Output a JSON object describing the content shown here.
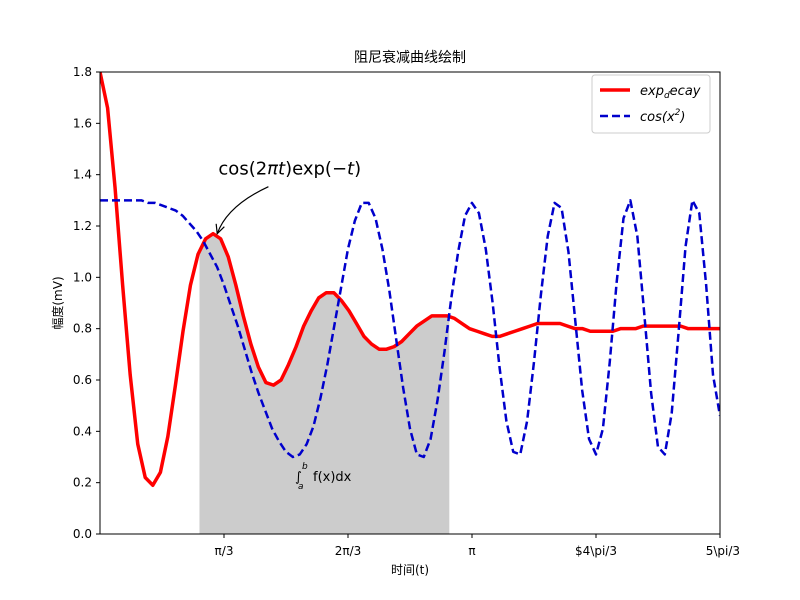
{
  "chart_data": {
    "type": "line",
    "title": "阻尼衰减曲线绘制",
    "xlabel": "时间(t)",
    "ylabel": "幅度(mV)",
    "xlim": [
      0,
      5.236
    ],
    "ylim": [
      0.0,
      1.8
    ],
    "yticks": [
      0.0,
      0.2,
      0.4,
      0.6,
      0.8,
      1.0,
      1.2,
      1.4,
      1.6,
      1.8
    ],
    "ytick_labels": [
      "0.0",
      "0.2",
      "0.4",
      "0.6",
      "0.8",
      "1.0",
      "1.2",
      "1.4",
      "1.6",
      "1.8"
    ],
    "xticks": [
      1.0472,
      2.0944,
      3.1416,
      4.1888,
      5.236
    ],
    "xtick_labels": [
      "π/3",
      "2π/3",
      "π",
      "$4\\pi/3",
      "5\\pi/3"
    ],
    "grid": false,
    "legend_position": "top-right",
    "series": [
      {
        "name": "exp_decay",
        "legend_label": "exp",
        "legend_sub": "d",
        "legend_rest": "ecay",
        "color": "#ff0000",
        "style": "solid",
        "x": [
          0.0,
          0.064,
          0.127,
          0.191,
          0.255,
          0.319,
          0.382,
          0.446,
          0.51,
          0.573,
          0.637,
          0.701,
          0.764,
          0.828,
          0.892,
          0.955,
          1.019,
          1.083,
          1.147,
          1.21,
          1.274,
          1.338,
          1.401,
          1.465,
          1.529,
          1.592,
          1.656,
          1.72,
          1.784,
          1.847,
          1.911,
          1.975,
          2.038,
          2.102,
          2.166,
          2.229,
          2.293,
          2.357,
          2.42,
          2.484,
          2.548,
          2.611,
          2.675,
          2.739,
          2.803,
          2.866,
          2.93,
          2.994,
          3.057,
          3.121,
          3.185,
          3.248,
          3.312,
          3.376,
          3.439,
          3.503,
          3.567,
          3.631,
          3.694,
          3.758,
          3.822,
          3.885,
          3.949,
          4.013,
          4.076,
          4.14,
          4.204,
          4.268,
          4.331,
          4.395,
          4.459,
          4.522,
          4.586,
          4.65,
          4.713,
          4.777,
          4.841,
          4.904,
          4.968,
          5.032,
          5.096,
          5.159,
          5.236
        ],
        "y": [
          1.8,
          1.66,
          1.35,
          0.97,
          0.62,
          0.35,
          0.22,
          0.19,
          0.24,
          0.38,
          0.58,
          0.79,
          0.97,
          1.09,
          1.15,
          1.17,
          1.15,
          1.08,
          0.97,
          0.85,
          0.74,
          0.65,
          0.59,
          0.58,
          0.6,
          0.66,
          0.73,
          0.81,
          0.87,
          0.92,
          0.94,
          0.94,
          0.91,
          0.87,
          0.82,
          0.77,
          0.74,
          0.72,
          0.72,
          0.73,
          0.75,
          0.78,
          0.81,
          0.83,
          0.85,
          0.85,
          0.85,
          0.84,
          0.82,
          0.8,
          0.79,
          0.78,
          0.77,
          0.77,
          0.78,
          0.79,
          0.8,
          0.81,
          0.82,
          0.82,
          0.82,
          0.82,
          0.81,
          0.8,
          0.8,
          0.79,
          0.79,
          0.79,
          0.79,
          0.8,
          0.8,
          0.8,
          0.81,
          0.81,
          0.81,
          0.81,
          0.81,
          0.81,
          0.8,
          0.8,
          0.8,
          0.8,
          0.8
        ]
      },
      {
        "name": "cos(x^2)",
        "legend_label": "cos(x",
        "legend_sup": "2",
        "legend_rest": ")",
        "color": "#0000cc",
        "style": "dashed",
        "x": [
          0.0,
          0.058,
          0.116,
          0.175,
          0.233,
          0.291,
          0.349,
          0.407,
          0.465,
          0.524,
          0.582,
          0.64,
          0.698,
          0.756,
          0.814,
          0.873,
          0.931,
          0.989,
          1.047,
          1.105,
          1.164,
          1.222,
          1.28,
          1.338,
          1.396,
          1.454,
          1.513,
          1.571,
          1.629,
          1.687,
          1.745,
          1.803,
          1.862,
          1.92,
          1.978,
          2.036,
          2.094,
          2.152,
          2.211,
          2.269,
          2.327,
          2.385,
          2.443,
          2.501,
          2.56,
          2.618,
          2.676,
          2.734,
          2.792,
          2.85,
          2.909,
          2.967,
          3.025,
          3.083,
          3.141,
          3.2,
          3.258,
          3.316,
          3.374,
          3.432,
          3.49,
          3.549,
          3.607,
          3.665,
          3.723,
          3.781,
          3.839,
          3.898,
          3.956,
          4.014,
          4.072,
          4.13,
          4.189,
          4.247,
          4.305,
          4.363,
          4.421,
          4.479,
          4.538,
          4.596,
          4.654,
          4.712,
          4.77,
          4.828,
          4.887,
          4.945,
          5.003,
          5.061,
          5.119,
          5.177,
          5.236
        ],
        "y": [
          1.3,
          1.3,
          1.3,
          1.3,
          1.3,
          1.3,
          1.3,
          1.29,
          1.29,
          1.28,
          1.27,
          1.26,
          1.24,
          1.21,
          1.18,
          1.14,
          1.09,
          1.04,
          0.97,
          0.89,
          0.81,
          0.72,
          0.63,
          0.55,
          0.48,
          0.41,
          0.36,
          0.32,
          0.3,
          0.31,
          0.35,
          0.42,
          0.53,
          0.66,
          0.81,
          0.96,
          1.11,
          1.22,
          1.29,
          1.29,
          1.23,
          1.11,
          0.95,
          0.76,
          0.57,
          0.41,
          0.31,
          0.3,
          0.37,
          0.52,
          0.71,
          0.92,
          1.1,
          1.24,
          1.29,
          1.25,
          1.11,
          0.9,
          0.65,
          0.44,
          0.32,
          0.31,
          0.44,
          0.67,
          0.93,
          1.16,
          1.29,
          1.27,
          1.1,
          0.83,
          0.56,
          0.37,
          0.31,
          0.41,
          0.67,
          0.98,
          1.23,
          1.3,
          1.16,
          0.86,
          0.55,
          0.34,
          0.31,
          0.47,
          0.79,
          1.12,
          1.3,
          1.25,
          0.97,
          0.62,
          0.46
        ]
      }
    ],
    "fill_region": {
      "x_start": 0.84,
      "x_end": 2.95,
      "color": "#cccccc",
      "label": "∫_a^b f(x)dx",
      "label_parts": {
        "int": "∫",
        "sub": "a",
        "sup": "b",
        "body": "f(x)dx"
      }
    },
    "annotation": {
      "text": "cos(2πt)exp(−t)",
      "parts": {
        "pre": "cos(2",
        "pi": "π",
        "t1": "t",
        "mid": ")exp(−",
        "t2": "t",
        "post": ")"
      },
      "xy": [
        0.99,
        1.17
      ],
      "xytext": [
        1.0,
        1.4
      ]
    }
  }
}
